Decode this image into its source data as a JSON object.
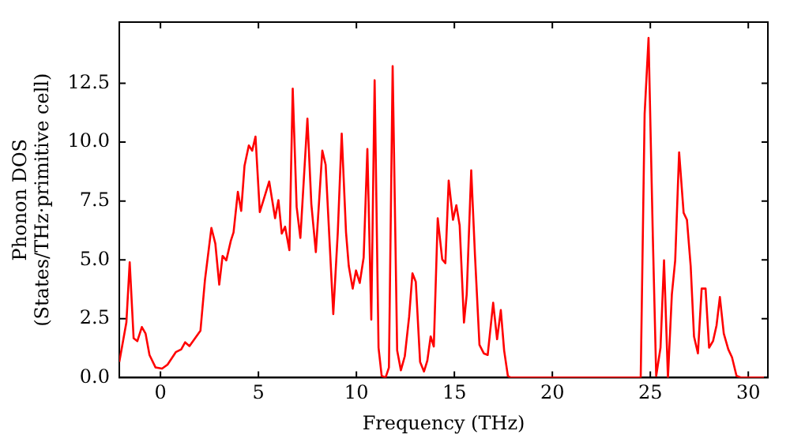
{
  "chart_data": {
    "type": "line",
    "xlabel": "Frequency (THz)",
    "ylabel": "Phonon DOS\n(States/THz·primitive cell)",
    "xlim": [
      -2.1,
      31
    ],
    "ylim": [
      0,
      15.1
    ],
    "xticks": [
      0,
      5,
      10,
      15,
      20,
      25,
      30
    ],
    "yticks": [
      {
        "value": 0,
        "label": "0.0"
      },
      {
        "value": 2.5,
        "label": "2.5"
      },
      {
        "value": 5,
        "label": "5.0"
      },
      {
        "value": 7.5,
        "label": "7.5"
      },
      {
        "value": 10,
        "label": "10.0"
      },
      {
        "value": 12.5,
        "label": "12.5"
      }
    ],
    "grid": false,
    "legend": false,
    "marker": "none",
    "line_style": "solid",
    "series": [
      {
        "color": "#ff0000",
        "x": [
          -2.1,
          -1.74,
          -1.57,
          -1.37,
          -1.18,
          -0.95,
          -0.76,
          -0.56,
          -0.25,
          0.08,
          0.36,
          0.78,
          1.06,
          1.26,
          1.48,
          2.04,
          2.27,
          2.6,
          2.8,
          3.0,
          3.17,
          3.36,
          3.59,
          3.73,
          3.95,
          4.12,
          4.29,
          4.51,
          4.68,
          4.85,
          5.07,
          5.55,
          5.85,
          6.02,
          6.19,
          6.36,
          6.58,
          6.75,
          6.95,
          7.14,
          7.5,
          7.7,
          7.93,
          8.26,
          8.43,
          8.82,
          9.05,
          9.25,
          9.47,
          9.61,
          9.81,
          9.98,
          10.17,
          10.37,
          10.56,
          10.76,
          10.93,
          11.13,
          11.29,
          11.49,
          11.66,
          11.85,
          12.08,
          12.27,
          12.47,
          12.69,
          12.86,
          13.03,
          13.25,
          13.45,
          13.62,
          13.79,
          13.95,
          14.15,
          14.38,
          14.54,
          14.71,
          14.93,
          15.1,
          15.27,
          15.49,
          15.63,
          15.86,
          16.05,
          16.28,
          16.5,
          16.7,
          16.98,
          17.18,
          17.37,
          17.54,
          17.73,
          17.87,
          24.51,
          24.71,
          24.91,
          25.13,
          25.3,
          25.52,
          25.7,
          25.9,
          26.1,
          26.27,
          26.47,
          26.7,
          26.87,
          27.06,
          27.23,
          27.43,
          27.62,
          27.82,
          28.0,
          28.2,
          28.38,
          28.55,
          28.75,
          28.98,
          29.17,
          29.4,
          29.64,
          30.8
        ],
        "values": [
          0.67,
          2.34,
          4.9,
          1.67,
          1.55,
          2.15,
          1.87,
          0.96,
          0.43,
          0.38,
          0.55,
          1.08,
          1.2,
          1.5,
          1.34,
          1.99,
          4.14,
          6.36,
          5.69,
          3.95,
          5.17,
          4.98,
          5.81,
          6.17,
          7.89,
          7.08,
          9.0,
          9.86,
          9.64,
          10.24,
          7.03,
          8.33,
          6.77,
          7.54,
          6.12,
          6.41,
          5.41,
          12.27,
          7.25,
          5.93,
          11.0,
          7.37,
          5.33,
          9.64,
          9.04,
          2.7,
          6.17,
          10.36,
          6.17,
          4.74,
          3.78,
          4.55,
          4.02,
          5.1,
          9.71,
          2.46,
          12.63,
          1.27,
          0.07,
          0,
          0.43,
          13.23,
          1.15,
          0.31,
          0.91,
          2.58,
          4.43,
          4.07,
          0.67,
          0.26,
          0.72,
          1.75,
          1.32,
          6.77,
          5.02,
          4.86,
          8.37,
          6.7,
          7.32,
          6.46,
          2.34,
          3.54,
          8.8,
          5.22,
          1.39,
          1.03,
          0.96,
          3.18,
          1.63,
          2.87,
          1.15,
          0.07,
          0,
          0,
          11.2,
          14.43,
          5.93,
          0.07,
          1.27,
          4.98,
          0,
          3.54,
          4.98,
          9.57,
          7.0,
          6.7,
          4.74,
          1.75,
          1.03,
          3.78,
          3.78,
          1.27,
          1.55,
          2.22,
          3.42,
          1.87,
          1.2,
          0.86,
          0.07,
          0,
          0
        ]
      }
    ]
  }
}
